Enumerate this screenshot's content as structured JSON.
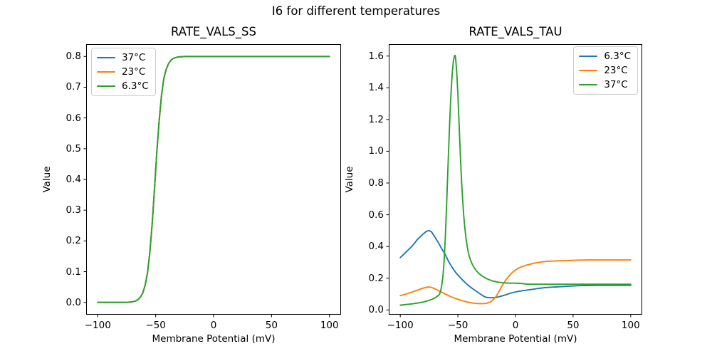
{
  "figure": {
    "suptitle": "I6 for different temperatures",
    "background": "#ffffff"
  },
  "palette": {
    "blue": "#1f77b4",
    "orange": "#ff7f0e",
    "green": "#2ca02c"
  },
  "chart_data": [
    {
      "id": "ss",
      "type": "line",
      "title": "RATE_VALS_SS",
      "xlabel": "Membrane Potential (mV)",
      "ylabel": "Value",
      "xlim": [
        -110,
        110
      ],
      "ylim": [
        -0.04,
        0.84
      ],
      "xticks": [
        -100,
        -50,
        0,
        50,
        100
      ],
      "xtick_labels": [
        "−100",
        "−50",
        "0",
        "50",
        "100"
      ],
      "yticks": [
        0.0,
        0.1,
        0.2,
        0.3,
        0.4,
        0.5,
        0.6,
        0.7,
        0.8
      ],
      "ytick_labels": [
        "0.0",
        "0.1",
        "0.2",
        "0.3",
        "0.4",
        "0.5",
        "0.6",
        "0.7",
        "0.8"
      ],
      "grid": false,
      "legend": {
        "position": "upper-left",
        "entries": [
          {
            "label": "37°C",
            "color": "#1f77b4"
          },
          {
            "label": "23°C",
            "color": "#ff7f0e"
          },
          {
            "label": "6.3°C",
            "color": "#2ca02c"
          }
        ]
      },
      "note": "All three temperature curves overlap exactly (identical sigmoid 0 to 0.8, midpoint near -50 mV); only the last-drawn green curve is visible.",
      "x": [
        -100,
        -90,
        -80,
        -75,
        -70,
        -67,
        -65,
        -63,
        -61,
        -59,
        -57,
        -55,
        -53,
        -51,
        -49,
        -47,
        -45,
        -43,
        -41,
        -39,
        -37,
        -35,
        -33,
        -31,
        -29,
        -27,
        -25,
        -20,
        -15,
        -10,
        -5,
        0,
        10,
        20,
        30,
        40,
        50,
        60,
        70,
        80,
        90,
        100
      ],
      "y": [
        0.0,
        0.0,
        0.0,
        0.0,
        0.002,
        0.005,
        0.01,
        0.018,
        0.032,
        0.057,
        0.098,
        0.164,
        0.256,
        0.37,
        0.489,
        0.59,
        0.672,
        0.728,
        0.757,
        0.776,
        0.787,
        0.793,
        0.796,
        0.798,
        0.799,
        0.799,
        0.8,
        0.8,
        0.8,
        0.8,
        0.8,
        0.8,
        0.8,
        0.8,
        0.8,
        0.8,
        0.8,
        0.8,
        0.8,
        0.8,
        0.8,
        0.8
      ],
      "series": [
        {
          "name": "37°C",
          "color": "#1f77b4"
        },
        {
          "name": "23°C",
          "color": "#ff7f0e"
        },
        {
          "name": "6.3°C",
          "color": "#2ca02c"
        }
      ]
    },
    {
      "id": "tau",
      "type": "line",
      "title": "RATE_VALS_TAU",
      "xlabel": "Membrane Potential (mV)",
      "ylabel": "Value",
      "xlim": [
        -110,
        110
      ],
      "ylim": [
        -0.03,
        1.675
      ],
      "xticks": [
        -100,
        -50,
        0,
        50,
        100
      ],
      "xtick_labels": [
        "−100",
        "−50",
        "0",
        "50",
        "100"
      ],
      "yticks": [
        0.0,
        0.2,
        0.4,
        0.6,
        0.8,
        1.0,
        1.2,
        1.4,
        1.6
      ],
      "ytick_labels": [
        "0.0",
        "0.2",
        "0.4",
        "0.6",
        "0.8",
        "1.0",
        "1.2",
        "1.4",
        "1.6"
      ],
      "grid": false,
      "legend": {
        "position": "upper-right",
        "entries": [
          {
            "label": "6.3°C",
            "color": "#1f77b4"
          },
          {
            "label": "23°C",
            "color": "#ff7f0e"
          },
          {
            "label": "37°C",
            "color": "#2ca02c"
          }
        ]
      },
      "series": [
        {
          "name": "6.3°C",
          "color": "#1f77b4",
          "x": [
            -100,
            -95,
            -90,
            -85,
            -80,
            -77,
            -75,
            -73,
            -70,
            -67,
            -64,
            -61,
            -58,
            -55,
            -52,
            -50,
            -47,
            -44,
            -41,
            -38,
            -35,
            -32,
            -30,
            -28,
            -26,
            -24,
            -21,
            -18,
            -15,
            -12,
            -9,
            -6,
            -3,
            0,
            3,
            7,
            11,
            15,
            20,
            25,
            30,
            35,
            40,
            45,
            50,
            55,
            60,
            70,
            80,
            90,
            100
          ],
          "y": [
            0.33,
            0.365,
            0.4,
            0.445,
            0.48,
            0.497,
            0.5,
            0.493,
            0.46,
            0.425,
            0.385,
            0.35,
            0.305,
            0.268,
            0.237,
            0.22,
            0.197,
            0.175,
            0.155,
            0.138,
            0.123,
            0.108,
            0.098,
            0.088,
            0.081,
            0.078,
            0.077,
            0.078,
            0.082,
            0.088,
            0.094,
            0.102,
            0.108,
            0.113,
            0.118,
            0.122,
            0.126,
            0.13,
            0.136,
            0.14,
            0.143,
            0.145,
            0.147,
            0.149,
            0.151,
            0.153,
            0.154,
            0.155,
            0.155,
            0.155,
            0.155
          ]
        },
        {
          "name": "23°C",
          "color": "#ff7f0e",
          "x": [
            -100,
            -95,
            -90,
            -85,
            -80,
            -77,
            -75,
            -73,
            -70,
            -67,
            -64,
            -61,
            -58,
            -55,
            -52,
            -49,
            -46,
            -43,
            -40,
            -37,
            -34,
            -31,
            -28,
            -25,
            -22,
            -20,
            -18,
            -16,
            -14,
            -12,
            -10,
            -8,
            -6,
            -4,
            -2,
            0,
            3,
            6,
            9,
            13,
            17,
            22,
            27,
            35,
            45,
            55,
            65,
            80,
            100
          ],
          "y": [
            0.09,
            0.1,
            0.112,
            0.125,
            0.138,
            0.143,
            0.145,
            0.142,
            0.133,
            0.122,
            0.111,
            0.1,
            0.09,
            0.08,
            0.072,
            0.065,
            0.058,
            0.052,
            0.047,
            0.043,
            0.041,
            0.04,
            0.04,
            0.042,
            0.05,
            0.06,
            0.075,
            0.095,
            0.12,
            0.148,
            0.172,
            0.193,
            0.21,
            0.228,
            0.24,
            0.252,
            0.265,
            0.274,
            0.281,
            0.289,
            0.296,
            0.302,
            0.306,
            0.309,
            0.311,
            0.314,
            0.315,
            0.315,
            0.315
          ]
        },
        {
          "name": "37°C",
          "color": "#2ca02c",
          "x": [
            -100,
            -95,
            -90,
            -85,
            -80,
            -76,
            -72,
            -69,
            -66,
            -65,
            -64,
            -63,
            -62,
            -61,
            -60,
            -59,
            -58,
            -57,
            -56,
            -55,
            -54,
            -53,
            -52.4,
            -52,
            -51,
            -50,
            -49,
            -48,
            -47,
            -46,
            -45,
            -44,
            -43,
            -42,
            -41,
            -40,
            -38,
            -36,
            -34,
            -32,
            -30,
            -28,
            -26,
            -24,
            -22,
            -20,
            -17,
            -14,
            -11,
            -8,
            -5,
            -1,
            3,
            6,
            9,
            12,
            20,
            30,
            45,
            60,
            80,
            100
          ],
          "y": [
            0.03,
            0.034,
            0.038,
            0.043,
            0.05,
            0.058,
            0.068,
            0.08,
            0.098,
            0.118,
            0.155,
            0.21,
            0.3,
            0.44,
            0.62,
            0.82,
            1.02,
            1.2,
            1.36,
            1.48,
            1.565,
            1.6,
            1.605,
            1.59,
            1.5,
            1.36,
            1.18,
            1.0,
            0.84,
            0.71,
            0.6,
            0.52,
            0.455,
            0.405,
            0.365,
            0.335,
            0.295,
            0.268,
            0.247,
            0.232,
            0.22,
            0.21,
            0.201,
            0.194,
            0.188,
            0.183,
            0.178,
            0.174,
            0.171,
            0.17,
            0.169,
            0.169,
            0.168,
            0.166,
            0.163,
            0.162,
            0.162,
            0.162,
            0.162,
            0.162,
            0.162,
            0.162
          ]
        }
      ]
    }
  ]
}
